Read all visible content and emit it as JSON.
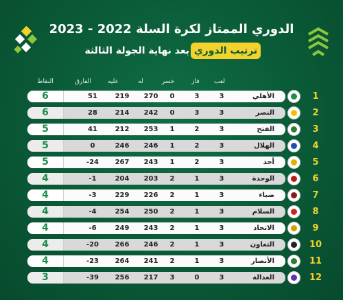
{
  "title": "الدوري الممتاز لكرة السلة 2022 - 2023",
  "badge": "ترتيب الدوري",
  "subtitle": "بعد نهاية الجولة الثالثة",
  "columns": {
    "played": "لعب",
    "won": "فاز",
    "lost": "خسر",
    "for": "له",
    "against": "عليه",
    "diff": "الفارق",
    "points": "النقاط"
  },
  "rows": [
    {
      "rank": "1",
      "team": "الأهلي",
      "played": "3",
      "won": "3",
      "lost": "0",
      "for": "270",
      "against": "219",
      "diff": "51",
      "points": "6",
      "logo_color": "#1e8f4a"
    },
    {
      "rank": "2",
      "team": "النصر",
      "played": "3",
      "won": "3",
      "lost": "0",
      "for": "242",
      "against": "214",
      "diff": "28",
      "points": "6",
      "logo_color": "#f2c200"
    },
    {
      "rank": "3",
      "team": "الفتح",
      "played": "3",
      "won": "2",
      "lost": "1",
      "for": "253",
      "against": "212",
      "diff": "41",
      "points": "5",
      "logo_color": "#2e7d32"
    },
    {
      "rank": "4",
      "team": "الهلال",
      "played": "3",
      "won": "2",
      "lost": "1",
      "for": "246",
      "against": "246",
      "diff": "0",
      "points": "5",
      "logo_color": "#1a4fb5"
    },
    {
      "rank": "5",
      "team": "أحد",
      "played": "3",
      "won": "2",
      "lost": "1",
      "for": "243",
      "against": "267",
      "diff": "-24",
      "points": "5",
      "logo_color": "#e0b100"
    },
    {
      "rank": "6",
      "team": "الوحدة",
      "played": "3",
      "won": "1",
      "lost": "2",
      "for": "203",
      "against": "204",
      "diff": "-1",
      "points": "4",
      "logo_color": "#b71c1c"
    },
    {
      "rank": "7",
      "team": "ضباء",
      "played": "3",
      "won": "1",
      "lost": "2",
      "for": "226",
      "against": "229",
      "diff": "-3",
      "points": "4",
      "logo_color": "#8b1a1a"
    },
    {
      "rank": "8",
      "team": "السلام",
      "played": "3",
      "won": "1",
      "lost": "2",
      "for": "250",
      "against": "254",
      "diff": "-4",
      "points": "4",
      "logo_color": "#c62828"
    },
    {
      "rank": "9",
      "team": "الاتحاد",
      "played": "3",
      "won": "1",
      "lost": "2",
      "for": "243",
      "against": "249",
      "diff": "-6",
      "points": "4",
      "logo_color": "#d4a000"
    },
    {
      "rank": "10",
      "team": "التعاون",
      "played": "3",
      "won": "1",
      "lost": "2",
      "for": "246",
      "against": "266",
      "diff": "-20",
      "points": "4",
      "logo_color": "#222222"
    },
    {
      "rank": "11",
      "team": "الأنصار",
      "played": "3",
      "won": "1",
      "lost": "2",
      "for": "241",
      "against": "264",
      "diff": "-23",
      "points": "4",
      "logo_color": "#2e7d32"
    },
    {
      "rank": "12",
      "team": "العدالة",
      "played": "3",
      "won": "0",
      "lost": "3",
      "for": "217",
      "against": "256",
      "diff": "-39",
      "points": "3",
      "logo_color": "#5e35b1"
    }
  ],
  "colors": {
    "accent": "#f3d22b",
    "background": "#0a5a37",
    "points": "#1d8a4e"
  },
  "icons": {
    "decor_left": "diamond-cluster-icon",
    "decor_right": "chevron-tree-icon"
  }
}
